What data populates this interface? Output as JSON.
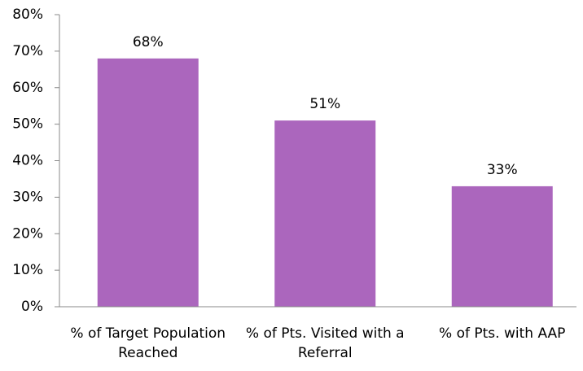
{
  "chart_data": {
    "type": "bar",
    "categories": [
      "% of Target Population Reached",
      "% of Pts. Visited with a Referral",
      "% of Pts. with AAP"
    ],
    "values": [
      68,
      51,
      33
    ],
    "value_labels": [
      "68%",
      "51%",
      "33%"
    ],
    "color": "#ab66bd",
    "ylim": [
      0,
      80
    ],
    "yticks": [
      {
        "value": 0,
        "label": "0%"
      },
      {
        "value": 10,
        "label": "10%"
      },
      {
        "value": 20,
        "label": "20%"
      },
      {
        "value": 30,
        "label": "30%"
      },
      {
        "value": 40,
        "label": "40%"
      },
      {
        "value": 50,
        "label": "50%"
      },
      {
        "value": 60,
        "label": "60%"
      },
      {
        "value": 70,
        "label": "70%"
      },
      {
        "value": 80,
        "label": "80%"
      }
    ],
    "grid": false
  }
}
